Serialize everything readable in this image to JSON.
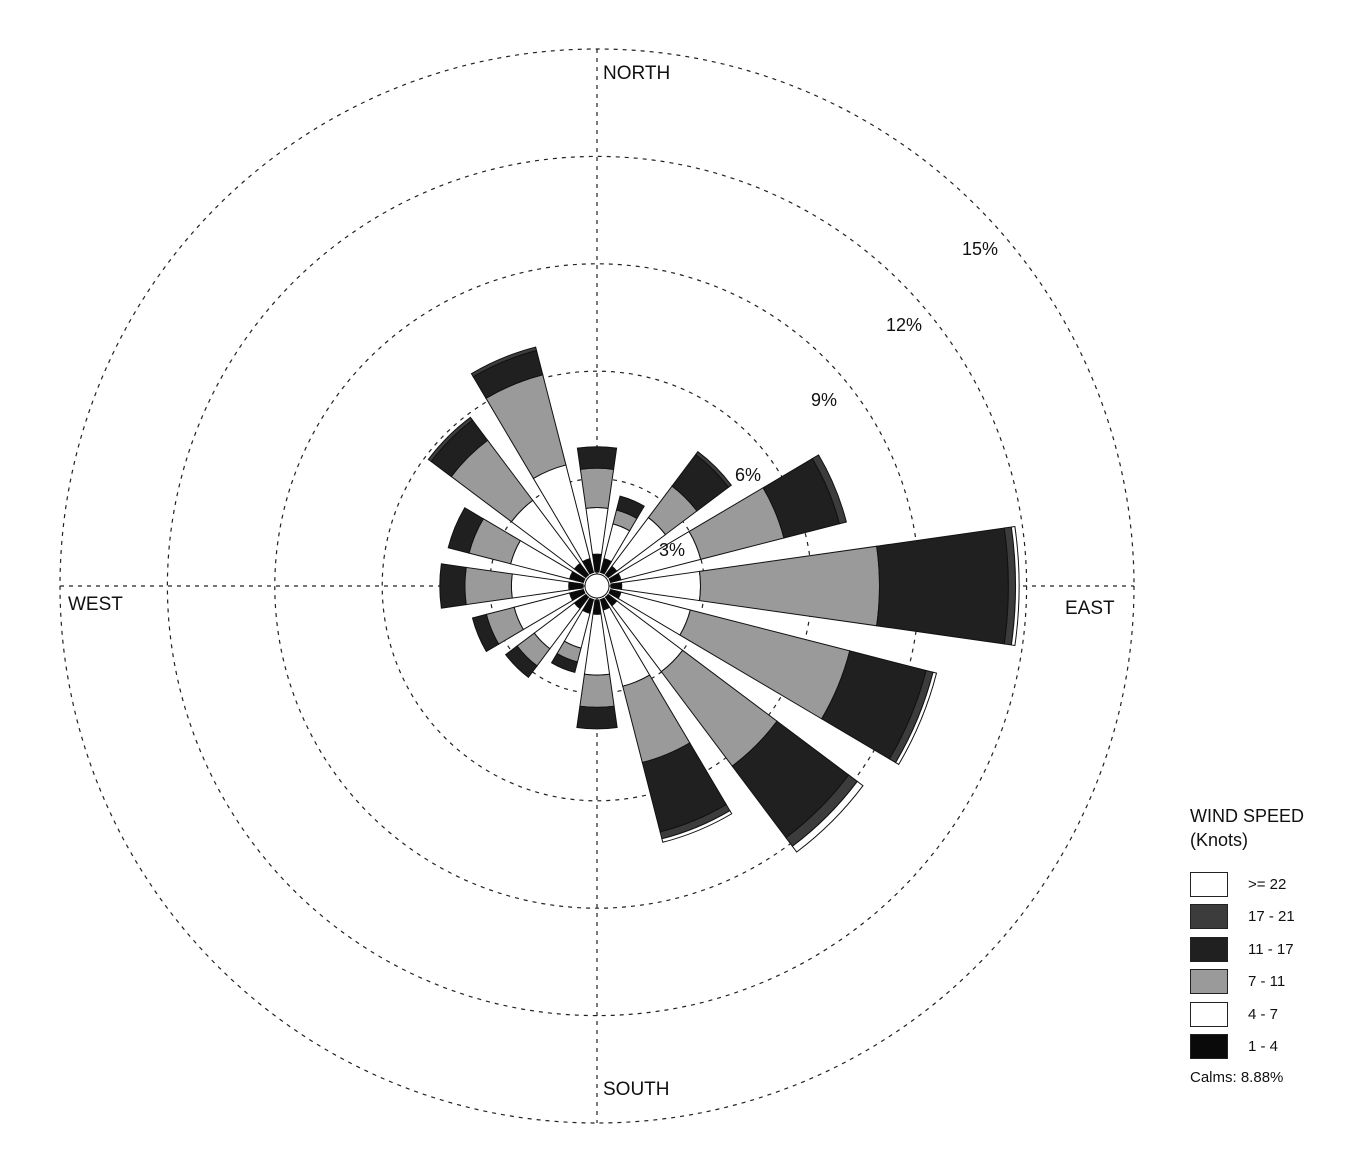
{
  "chart_data": {
    "type": "wind-rose",
    "title": "",
    "compass_labels": {
      "north": "NORTH",
      "east": "EAST",
      "south": "SOUTH",
      "west": "WEST"
    },
    "rings": [
      3,
      6,
      9,
      12,
      15
    ],
    "ring_labels": [
      "3%",
      "6%",
      "9%",
      "12%",
      "15%"
    ],
    "legend": {
      "title_line1": "WIND SPEED",
      "title_line2": "(Knots)",
      "calms_text": "Calms: 8.88%"
    },
    "speed_bins": [
      {
        "label": "1 - 4",
        "color": "#0a0a0a"
      },
      {
        "label": "4 - 7",
        "color": "#ffffff"
      },
      {
        "label": "7 - 11",
        "color": "#9a9a9a"
      },
      {
        "label": "11 - 17",
        "color": "#202020"
      },
      {
        "label": "17 - 21",
        "color": "#3c3c3c"
      },
      {
        "label": ">= 22",
        "color": "#ffffff"
      }
    ],
    "directions": [
      {
        "dir": "N",
        "values": [
          0.5,
          1.3,
          1.1,
          0.6,
          0.0,
          0.0
        ]
      },
      {
        "dir": "NNE",
        "values": [
          0.4,
          1.0,
          0.4,
          0.4,
          0.0,
          0.0
        ]
      },
      {
        "dir": "NE",
        "values": [
          0.3,
          1.7,
          1.1,
          1.1,
          0.1,
          0.0
        ]
      },
      {
        "dir": "ENE",
        "values": [
          0.3,
          2.3,
          2.4,
          1.6,
          0.2,
          0.0
        ]
      },
      {
        "dir": "E",
        "values": [
          0.3,
          2.2,
          5.0,
          3.6,
          0.2,
          0.1
        ]
      },
      {
        "dir": "ESE",
        "values": [
          0.3,
          2.0,
          4.6,
          2.2,
          0.2,
          0.1
        ]
      },
      {
        "dir": "SE",
        "values": [
          0.3,
          2.3,
          3.3,
          2.5,
          0.3,
          0.2
        ]
      },
      {
        "dir": "SSE",
        "values": [
          0.3,
          2.2,
          2.2,
          2.0,
          0.2,
          0.1
        ]
      },
      {
        "dir": "S",
        "values": [
          0.4,
          1.7,
          0.9,
          0.6,
          0.0,
          0.0
        ]
      },
      {
        "dir": "SSW",
        "values": [
          0.4,
          1.0,
          0.4,
          0.3,
          0.0,
          0.0
        ]
      },
      {
        "dir": "SW",
        "values": [
          0.4,
          1.4,
          0.6,
          0.4,
          0.0,
          0.0
        ]
      },
      {
        "dir": "WSW",
        "values": [
          0.4,
          1.6,
          0.8,
          0.4,
          0.0,
          0.0
        ]
      },
      {
        "dir": "W",
        "values": [
          0.4,
          1.6,
          1.3,
          0.7,
          0.0,
          0.0
        ]
      },
      {
        "dir": "WNW",
        "values": [
          0.4,
          1.7,
          1.2,
          0.6,
          0.0,
          0.0
        ]
      },
      {
        "dir": "NW",
        "values": [
          0.4,
          2.2,
          2.1,
          0.7,
          0.1,
          0.0
        ]
      },
      {
        "dir": "NNW",
        "values": [
          0.4,
          2.7,
          2.6,
          0.7,
          0.1,
          0.0
        ]
      }
    ]
  }
}
